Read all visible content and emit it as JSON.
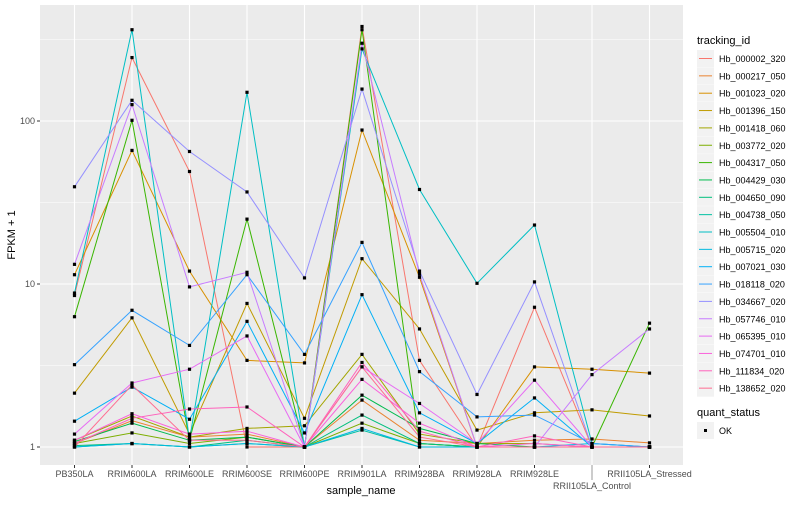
{
  "chart_data": {
    "type": "line",
    "xlabel": "sample_name",
    "ylabel": "FPKM + 1",
    "y_scale": "log10",
    "ylim": [
      0.78,
      500
    ],
    "y_ticks": [
      {
        "value": 1,
        "label": "1"
      },
      {
        "value": 10,
        "label": "10"
      },
      {
        "value": 100,
        "label": "100"
      }
    ],
    "grid": true,
    "legend_position": "right",
    "categories": [
      "PB350LA",
      "RRIM600LA",
      "RRIM600LE",
      "RRIM600SE",
      "RRIM600PE",
      "RRIM901LA",
      "RRIM928BA",
      "RRIM928LA",
      "RRIM928LE",
      "RRII105LA_Control",
      "RRII105LA_Stressed"
    ],
    "legend_title": "tracking_id",
    "series": [
      {
        "name": "Hb_000002_320",
        "color": "#F8766D",
        "values": [
          8.5,
          245,
          49,
          1.0,
          1.0,
          380,
          3.4,
          1.0,
          7.2,
          1.0,
          1.0
        ]
      },
      {
        "name": "Hb_000217_050",
        "color": "#EA8331",
        "values": [
          1.05,
          1.45,
          1.15,
          1.2,
          1.0,
          1.94,
          1.1,
          1.05,
          1.1,
          1.12,
          1.06
        ]
      },
      {
        "name": "Hb_001023_020",
        "color": "#D89000",
        "values": [
          11.4,
          66,
          12,
          3.4,
          3.28,
          88,
          11,
          1.0,
          3.1,
          3.0,
          2.84
        ]
      },
      {
        "name": "Hb_001396_150",
        "color": "#C09B00",
        "values": [
          2.14,
          6.2,
          1.2,
          7.6,
          1.5,
          14.3,
          5.3,
          1.27,
          1.62,
          1.69,
          1.55
        ]
      },
      {
        "name": "Hb_001418_060",
        "color": "#A3A500",
        "values": [
          1.1,
          1.55,
          1.15,
          1.3,
          1.35,
          3.7,
          1.2,
          1.05,
          1.05,
          1.0,
          1.0
        ]
      },
      {
        "name": "Hb_003772_020",
        "color": "#7CAE00",
        "values": [
          1.05,
          1.22,
          1.05,
          1.15,
          1.0,
          1.4,
          1.05,
          1.0,
          1.0,
          1.0,
          1.0
        ]
      },
      {
        "name": "Hb_004317_050",
        "color": "#39B600",
        "values": [
          6.3,
          101,
          1.1,
          25,
          1.0,
          363,
          1.05,
          1.0,
          1.0,
          1.0,
          5.75
        ]
      },
      {
        "name": "Hb_004429_030",
        "color": "#00BB4E",
        "values": [
          1.08,
          1.4,
          1.1,
          1.15,
          1.0,
          2.08,
          1.3,
          1.05,
          1.0,
          1.0,
          1.0
        ]
      },
      {
        "name": "Hb_004650_090",
        "color": "#00BF7D",
        "values": [
          1.02,
          1.05,
          1.0,
          1.1,
          1.0,
          1.57,
          1.05,
          1.0,
          1.0,
          1.0,
          1.0
        ]
      },
      {
        "name": "Hb_004738_050",
        "color": "#00C1A3",
        "values": [
          1.0,
          1.05,
          1.0,
          1.05,
          1.0,
          1.27,
          1.0,
          1.0,
          1.0,
          1.0,
          1.0
        ]
      },
      {
        "name": "Hb_005504_010",
        "color": "#00BFC4",
        "values": [
          8.8,
          363,
          1.1,
          150,
          1.0,
          277,
          38,
          10.1,
          23,
          1.05,
          1.0
        ]
      },
      {
        "name": "Hb_005715_020",
        "color": "#00BAE0",
        "values": [
          1.0,
          1.05,
          1.0,
          1.05,
          1.0,
          1.3,
          1.0,
          1.0,
          1.0,
          1.05,
          1.0
        ]
      },
      {
        "name": "Hb_007021_030",
        "color": "#00B0F6",
        "values": [
          1.44,
          2.33,
          1.48,
          5.9,
          1.22,
          8.6,
          1.62,
          1.05,
          2.0,
          1.0,
          1.0
        ]
      },
      {
        "name": "Hb_018118_020",
        "color": "#35A2FF",
        "values": [
          3.2,
          6.9,
          4.2,
          11.4,
          3.7,
          18,
          2.9,
          1.53,
          1.57,
          1.05,
          1.0
        ]
      },
      {
        "name": "Hb_034667_020",
        "color": "#9590FF",
        "values": [
          39.5,
          134,
          65,
          36.7,
          10.9,
          157,
          12,
          2.1,
          10.3,
          1.0,
          1.0
        ]
      },
      {
        "name": "Hb_057746_010",
        "color": "#C77CFF",
        "values": [
          13.2,
          126,
          9.6,
          11.8,
          1.0,
          300,
          11.5,
          1.0,
          1.0,
          2.78,
          5.3
        ]
      },
      {
        "name": "Hb_065395_010",
        "color": "#E76BF3",
        "values": [
          1.2,
          2.47,
          3.0,
          4.8,
          1.0,
          3.1,
          1.85,
          1.05,
          2.57,
          1.0,
          1.0
        ]
      },
      {
        "name": "Hb_074701_010",
        "color": "#FA62DB",
        "values": [
          1.1,
          1.6,
          1.2,
          1.25,
          1.0,
          2.6,
          1.4,
          1.0,
          1.05,
          1.0,
          1.0
        ]
      },
      {
        "name": "Hb_111834_020",
        "color": "#FF62BC",
        "values": [
          1.05,
          1.5,
          1.71,
          1.76,
          1.0,
          3.3,
          1.25,
          1.0,
          1.17,
          1.0,
          1.0
        ]
      },
      {
        "name": "Hb_138652_020",
        "color": "#FF6C91",
        "values": [
          1.0,
          2.4,
          1.1,
          1.1,
          1.0,
          3.1,
          1.15,
          1.0,
          1.0,
          1.0,
          1.0
        ]
      }
    ],
    "shape_legend": {
      "title": "quant_status",
      "entries": [
        "OK"
      ]
    },
    "panel_color": "#EBEBEB",
    "grid_color": "#FFFFFF"
  }
}
